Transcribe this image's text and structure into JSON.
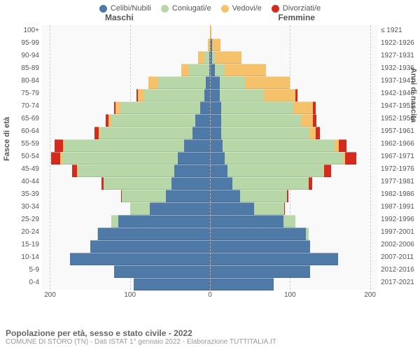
{
  "legend": {
    "items": [
      {
        "label": "Celibi/Nubili",
        "color": "#4f79a6"
      },
      {
        "label": "Coniugati/e",
        "color": "#b7d7a8"
      },
      {
        "label": "Vedovi/e",
        "color": "#f5c26b"
      },
      {
        "label": "Divorziati/e",
        "color": "#d52b1e"
      }
    ]
  },
  "headers": {
    "male": "Maschi",
    "female": "Femmine"
  },
  "axis": {
    "left_label": "Fasce di età",
    "right_label": "Anni di nascita",
    "xticks": [
      -200,
      -100,
      0,
      100,
      200
    ],
    "xtick_labels": [
      "200",
      "100",
      "0",
      "100",
      "200"
    ],
    "xmax": 210
  },
  "colors": {
    "single": "#4f79a6",
    "married": "#b7d7a8",
    "widowed": "#f5c26b",
    "divorced": "#d52b1e",
    "plot_bg": "#f9f9f9",
    "grid": "#cccccc",
    "center": "#e8a060"
  },
  "footer": {
    "title": "Popolazione per età, sesso e stato civile - 2022",
    "sub": "COMUNE DI STORO (TN) - Dati ISTAT 1° gennaio 2022 - Elaborazione TUTTITALIA.IT"
  },
  "rows": [
    {
      "age": "100+",
      "birth": "≤ 1921",
      "m": {
        "s": 0,
        "c": 0,
        "w": 0,
        "d": 0
      },
      "f": {
        "s": 0,
        "c": 0,
        "w": 2,
        "d": 0
      }
    },
    {
      "age": "95-99",
      "birth": "1922-1926",
      "m": {
        "s": 0,
        "c": 0,
        "w": 3,
        "d": 0
      },
      "f": {
        "s": 3,
        "c": 0,
        "w": 10,
        "d": 0
      }
    },
    {
      "age": "90-94",
      "birth": "1927-1931",
      "m": {
        "s": 1,
        "c": 6,
        "w": 8,
        "d": 0
      },
      "f": {
        "s": 3,
        "c": 3,
        "w": 33,
        "d": 0
      }
    },
    {
      "age": "85-89",
      "birth": "1932-1936",
      "m": {
        "s": 1,
        "c": 25,
        "w": 10,
        "d": 0
      },
      "f": {
        "s": 6,
        "c": 12,
        "w": 52,
        "d": 0
      }
    },
    {
      "age": "80-84",
      "birth": "1937-1941",
      "m": {
        "s": 5,
        "c": 60,
        "w": 12,
        "d": 0
      },
      "f": {
        "s": 12,
        "c": 32,
        "w": 56,
        "d": 0
      }
    },
    {
      "age": "75-79",
      "birth": "1942-1946",
      "m": {
        "s": 7,
        "c": 75,
        "w": 8,
        "d": 2
      },
      "f": {
        "s": 12,
        "c": 55,
        "w": 40,
        "d": 2
      }
    },
    {
      "age": "70-74",
      "birth": "1947-1951",
      "m": {
        "s": 12,
        "c": 100,
        "w": 6,
        "d": 2
      },
      "f": {
        "s": 14,
        "c": 90,
        "w": 25,
        "d": 3
      }
    },
    {
      "age": "65-69",
      "birth": "1952-1956",
      "m": {
        "s": 18,
        "c": 105,
        "w": 4,
        "d": 3
      },
      "f": {
        "s": 14,
        "c": 100,
        "w": 15,
        "d": 4
      }
    },
    {
      "age": "60-64",
      "birth": "1957-1961",
      "m": {
        "s": 22,
        "c": 115,
        "w": 2,
        "d": 5
      },
      "f": {
        "s": 14,
        "c": 110,
        "w": 8,
        "d": 5
      }
    },
    {
      "age": "55-59",
      "birth": "1962-1966",
      "m": {
        "s": 32,
        "c": 150,
        "w": 2,
        "d": 10
      },
      "f": {
        "s": 16,
        "c": 140,
        "w": 5,
        "d": 10
      }
    },
    {
      "age": "50-54",
      "birth": "1967-1971",
      "m": {
        "s": 40,
        "c": 145,
        "w": 2,
        "d": 12
      },
      "f": {
        "s": 18,
        "c": 148,
        "w": 3,
        "d": 14
      }
    },
    {
      "age": "45-49",
      "birth": "1972-1976",
      "m": {
        "s": 45,
        "c": 120,
        "w": 1,
        "d": 6
      },
      "f": {
        "s": 22,
        "c": 120,
        "w": 1,
        "d": 8
      }
    },
    {
      "age": "40-44",
      "birth": "1977-1981",
      "m": {
        "s": 48,
        "c": 85,
        "w": 0,
        "d": 3
      },
      "f": {
        "s": 28,
        "c": 95,
        "w": 0,
        "d": 5
      }
    },
    {
      "age": "35-39",
      "birth": "1982-1986",
      "m": {
        "s": 55,
        "c": 55,
        "w": 0,
        "d": 1
      },
      "f": {
        "s": 38,
        "c": 58,
        "w": 0,
        "d": 2
      }
    },
    {
      "age": "30-34",
      "birth": "1987-1991",
      "m": {
        "s": 75,
        "c": 25,
        "w": 0,
        "d": 0
      },
      "f": {
        "s": 55,
        "c": 38,
        "w": 0,
        "d": 1
      }
    },
    {
      "age": "25-29",
      "birth": "1992-1996",
      "m": {
        "s": 115,
        "c": 8,
        "w": 0,
        "d": 0
      },
      "f": {
        "s": 92,
        "c": 15,
        "w": 0,
        "d": 0
      }
    },
    {
      "age": "20-24",
      "birth": "1997-2001",
      "m": {
        "s": 140,
        "c": 1,
        "w": 0,
        "d": 0
      },
      "f": {
        "s": 120,
        "c": 3,
        "w": 0,
        "d": 0
      }
    },
    {
      "age": "15-19",
      "birth": "2002-2006",
      "m": {
        "s": 150,
        "c": 0,
        "w": 0,
        "d": 0
      },
      "f": {
        "s": 125,
        "c": 0,
        "w": 0,
        "d": 0
      }
    },
    {
      "age": "10-14",
      "birth": "2007-2011",
      "m": {
        "s": 175,
        "c": 0,
        "w": 0,
        "d": 0
      },
      "f": {
        "s": 160,
        "c": 0,
        "w": 0,
        "d": 0
      }
    },
    {
      "age": "5-9",
      "birth": "2012-2016",
      "m": {
        "s": 120,
        "c": 0,
        "w": 0,
        "d": 0
      },
      "f": {
        "s": 125,
        "c": 0,
        "w": 0,
        "d": 0
      }
    },
    {
      "age": "0-4",
      "birth": "2017-2021",
      "m": {
        "s": 95,
        "c": 0,
        "w": 0,
        "d": 0
      },
      "f": {
        "s": 80,
        "c": 0,
        "w": 0,
        "d": 0
      }
    }
  ]
}
